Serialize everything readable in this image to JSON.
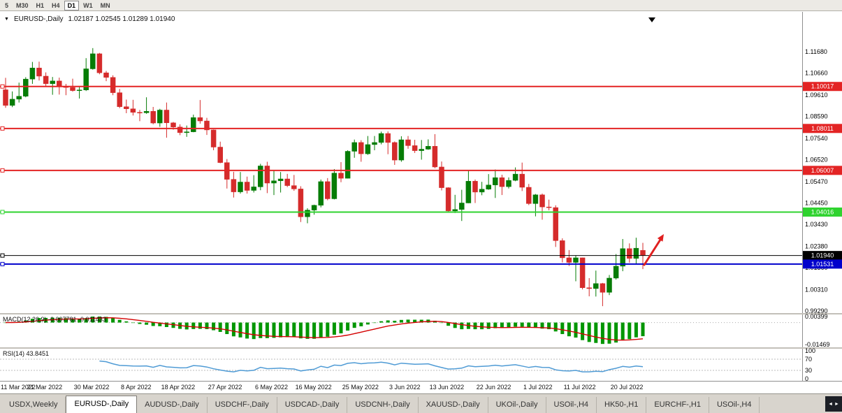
{
  "toolbar": {
    "timeframes": [
      "5",
      "M30",
      "H1",
      "H4",
      "D1",
      "W1",
      "MN"
    ],
    "active_timeframe": "D1"
  },
  "icons": {
    "dropdown": "▼",
    "shift_marker": "▼",
    "tab_scroll_left": "◄",
    "tab_scroll_right": "►"
  },
  "chart": {
    "symbol_label": "EURUSD-,Daily",
    "ohlc_text": "1.02187 1.02545 1.01289 1.01940",
    "price_lines": [
      {
        "price": 1.10017,
        "label": "1.10017",
        "color": "#e32424",
        "width": 2
      },
      {
        "price": 1.08011,
        "label": "1.08011",
        "color": "#e32424",
        "width": 2
      },
      {
        "price": 1.06007,
        "label": "1.06007",
        "color": "#e32424",
        "width": 2
      },
      {
        "price": 1.04016,
        "label": "1.04016",
        "color": "#2fd32f",
        "width": 2
      },
      {
        "price": 1.0194,
        "label": "1.01940",
        "color": "#000000",
        "width": 1
      },
      {
        "price": 1.01531,
        "label": "1.01531",
        "color": "#0000cc",
        "width": 2
      }
    ]
  },
  "chart_data": {
    "type": "candlestick",
    "symbol": "EURUSD-",
    "timeframe": "Daily",
    "title": "EURUSD-,Daily",
    "current_ohlc": {
      "open": 1.02187,
      "high": 1.02545,
      "low": 1.01289,
      "close": 1.0194
    },
    "y_range": [
      0.9929,
      1.1308
    ],
    "y_axis_ticks": [
      "1.11680",
      "1.10660",
      "1.09610",
      "1.08590",
      "1.07540",
      "1.06520",
      "1.05470",
      "1.04450",
      "1.03430",
      "1.02380",
      "1.01360",
      "1.00310",
      "0.99290"
    ],
    "x_tick_labels": [
      {
        "i": 0,
        "label": "11 Mar 2022"
      },
      {
        "i": 6,
        "label": "21 Mar 2022"
      },
      {
        "i": 13,
        "label": "30 Mar 2022"
      },
      {
        "i": 20,
        "label": "8 Apr 2022"
      },
      {
        "i": 26,
        "label": "18 Apr 2022"
      },
      {
        "i": 33,
        "label": "27 Apr 2022"
      },
      {
        "i": 40,
        "label": "6 May 2022"
      },
      {
        "i": 46,
        "label": "16 May 2022"
      },
      {
        "i": 53,
        "label": "25 May 2022"
      },
      {
        "i": 60,
        "label": "3 Jun 2022"
      },
      {
        "i": 66,
        "label": "13 Jun 2022"
      },
      {
        "i": 73,
        "label": "22 Jun 2022"
      },
      {
        "i": 80,
        "label": "1 Jul 2022"
      },
      {
        "i": 86,
        "label": "11 Jul 2022"
      },
      {
        "i": 93,
        "label": "20 Jul 2022"
      }
    ],
    "candles": [
      [
        1.0986,
        1.1043,
        1.09,
        1.0911
      ],
      [
        1.0911,
        1.0978,
        1.0903,
        1.0941
      ],
      [
        1.0941,
        1.102,
        1.0925,
        1.0955
      ],
      [
        1.0955,
        1.1046,
        1.095,
        1.1037
      ],
      [
        1.1037,
        1.1119,
        1.1014,
        1.109
      ],
      [
        1.109,
        1.112,
        1.103,
        1.1051
      ],
      [
        1.1051,
        1.1069,
        1.1003,
        1.1015
      ],
      [
        1.1015,
        1.1047,
        1.0962,
        1.1028
      ],
      [
        1.1028,
        1.1044,
        1.0963,
        1.1003
      ],
      [
        1.1003,
        1.1014,
        1.096,
        1.0997
      ],
      [
        1.0997,
        1.1039,
        1.0977,
        1.0982
      ],
      [
        1.0982,
        1.0999,
        1.0944,
        1.0985
      ],
      [
        1.0985,
        1.1137,
        1.098,
        1.1086
      ],
      [
        1.1086,
        1.1185,
        1.1082,
        1.1158
      ],
      [
        1.1158,
        1.1162,
        1.106,
        1.1067
      ],
      [
        1.1067,
        1.1076,
        1.1027,
        1.1045
      ],
      [
        1.1045,
        1.1055,
        1.096,
        1.0972
      ],
      [
        1.0972,
        1.099,
        1.0898,
        1.0905
      ],
      [
        1.0905,
        1.0939,
        1.0874,
        1.0895
      ],
      [
        1.0895,
        1.0938,
        1.0863,
        1.0878
      ],
      [
        1.0878,
        1.089,
        1.0836,
        1.0876
      ],
      [
        1.0876,
        1.095,
        1.0871,
        1.0883
      ],
      [
        1.0883,
        1.0904,
        1.0821,
        1.0827
      ],
      [
        1.0827,
        1.0895,
        1.0809,
        1.0889
      ],
      [
        1.0889,
        1.0925,
        1.0757,
        1.0828
      ],
      [
        1.0828,
        1.0832,
        1.0795,
        1.0808
      ],
      [
        1.0808,
        1.0821,
        1.0769,
        1.0781
      ],
      [
        1.0781,
        1.0815,
        1.0761,
        1.0785
      ],
      [
        1.0785,
        1.0867,
        1.0783,
        1.0853
      ],
      [
        1.0853,
        1.0937,
        1.0824,
        1.0837
      ],
      [
        1.0837,
        1.0852,
        1.077,
        1.0794
      ],
      [
        1.0794,
        1.0796,
        1.0697,
        1.0712
      ],
      [
        1.0712,
        1.0738,
        1.0635,
        1.0638
      ],
      [
        1.0638,
        1.0655,
        1.0514,
        1.0558
      ],
      [
        1.0558,
        1.0594,
        1.0471,
        1.0498
      ],
      [
        1.0498,
        1.0593,
        1.049,
        1.0545
      ],
      [
        1.0545,
        1.0571,
        1.049,
        1.0505
      ],
      [
        1.0505,
        1.0578,
        1.0495,
        1.0522
      ],
      [
        1.0522,
        1.0632,
        1.0506,
        1.0622
      ],
      [
        1.0622,
        1.0642,
        1.0492,
        1.054
      ],
      [
        1.054,
        1.0599,
        1.0483,
        1.0551
      ],
      [
        1.0551,
        1.0593,
        1.0495,
        1.056
      ],
      [
        1.056,
        1.0584,
        1.0521,
        1.0528
      ],
      [
        1.0528,
        1.0579,
        1.0503,
        1.0512
      ],
      [
        1.0512,
        1.0525,
        1.0354,
        1.0379
      ],
      [
        1.0379,
        1.042,
        1.0348,
        1.0411
      ],
      [
        1.0411,
        1.0437,
        1.0389,
        1.0434
      ],
      [
        1.0434,
        1.0557,
        1.0424,
        1.0547
      ],
      [
        1.0547,
        1.0564,
        1.0458,
        1.0465
      ],
      [
        1.0465,
        1.0607,
        1.0462,
        1.0588
      ],
      [
        1.0588,
        1.064,
        1.0544,
        1.0563
      ],
      [
        1.0563,
        1.0697,
        1.0562,
        1.0692
      ],
      [
        1.0692,
        1.0748,
        1.0661,
        1.0734
      ],
      [
        1.0734,
        1.0745,
        1.0642,
        1.068
      ],
      [
        1.068,
        1.0765,
        1.0675,
        1.0724
      ],
      [
        1.0724,
        1.0765,
        1.0697,
        1.0734
      ],
      [
        1.0734,
        1.0786,
        1.0725,
        1.0777
      ],
      [
        1.0777,
        1.0787,
        1.0678,
        1.0734
      ],
      [
        1.0734,
        1.0739,
        1.0627,
        1.065
      ],
      [
        1.065,
        1.0764,
        1.0642,
        1.0747
      ],
      [
        1.0747,
        1.0765,
        1.0704,
        1.0719
      ],
      [
        1.0719,
        1.0747,
        1.0684,
        1.0695
      ],
      [
        1.0695,
        1.0746,
        1.0652,
        1.0702
      ],
      [
        1.0702,
        1.0749,
        1.0699,
        1.0716
      ],
      [
        1.0716,
        1.0774,
        1.0611,
        1.0617
      ],
      [
        1.0617,
        1.0643,
        1.0505,
        1.0518
      ],
      [
        1.0518,
        1.052,
        1.0399,
        1.0407
      ],
      [
        1.0407,
        1.0484,
        1.0397,
        1.0414
      ],
      [
        1.0414,
        1.0508,
        1.0359,
        1.0445
      ],
      [
        1.0445,
        1.0601,
        1.0444,
        1.0549
      ],
      [
        1.0549,
        1.0557,
        1.0445,
        1.0497
      ],
      [
        1.0497,
        1.0546,
        1.0482,
        1.0511
      ],
      [
        1.0511,
        1.0583,
        1.0508,
        1.0531
      ],
      [
        1.0531,
        1.0605,
        1.0469,
        1.0566
      ],
      [
        1.0566,
        1.058,
        1.0483,
        1.0523
      ],
      [
        1.0523,
        1.0567,
        1.0514,
        1.0553
      ],
      [
        1.0553,
        1.0615,
        1.0549,
        1.0583
      ],
      [
        1.0583,
        1.0638,
        1.0502,
        1.052
      ],
      [
        1.052,
        1.0536,
        1.0435,
        1.0442
      ],
      [
        1.0442,
        1.0488,
        1.0381,
        1.0484
      ],
      [
        1.0484,
        1.049,
        1.0365,
        1.0426
      ],
      [
        1.0426,
        1.0461,
        1.041,
        1.0423
      ],
      [
        1.0423,
        1.0434,
        1.0235,
        1.0265
      ],
      [
        1.0265,
        1.0276,
        1.0161,
        1.0183
      ],
      [
        1.0183,
        1.022,
        1.0144,
        1.0161
      ],
      [
        1.0161,
        1.0193,
        1.0071,
        1.0183
      ],
      [
        1.0183,
        1.0184,
        1.0032,
        1.004
      ],
      [
        1.004,
        1.0086,
        0.9999,
        1.0036
      ],
      [
        1.0036,
        1.0122,
        0.9998,
        1.006
      ],
      [
        1.006,
        1.0063,
        0.9952,
        1.0018
      ],
      [
        1.0018,
        1.0101,
        1.0005,
        1.0086
      ],
      [
        1.0086,
        1.0201,
        1.0079,
        1.0143
      ],
      [
        1.0143,
        1.0273,
        1.0119,
        1.0227
      ],
      [
        1.0227,
        1.0252,
        1.016,
        1.018
      ],
      [
        1.018,
        1.0279,
        1.0151,
        1.0229
      ],
      [
        1.02187,
        1.02545,
        1.01289,
        1.0194
      ]
    ]
  },
  "indicators": {
    "macd": {
      "label": "MACD(12,26,9) -0.007781 -0.011433",
      "params": [
        12,
        26,
        9
      ],
      "value": -0.007781,
      "signal_value": -0.011433,
      "axis_labels": [
        "0.00399",
        "-0.01469"
      ]
    },
    "rsi": {
      "label": "RSI(14) 43.8451",
      "period": 14,
      "value": 43.8451,
      "axis_labels": [
        "100",
        "70",
        "30",
        "0"
      ],
      "levels": [
        70,
        30
      ]
    }
  },
  "annotations": {
    "trend_arrow": {
      "color": "#e02020",
      "from": [
        922,
        362
      ],
      "to": [
        950,
        318
      ]
    }
  },
  "colors": {
    "bull_candle": "#067c06",
    "bear_candle": "#d52b2b",
    "macd_histogram": "#009600",
    "macd_signal": "#d40000",
    "rsi_line": "#4f9bd5",
    "axis_text": "#000000"
  },
  "bottom_tabs": {
    "tabs": [
      {
        "label": "USDX,Weekly",
        "active": false
      },
      {
        "label": "EURUSD-,Daily",
        "active": true
      },
      {
        "label": "AUDUSD-,Daily",
        "active": false
      },
      {
        "label": "USDCHF-,Daily",
        "active": false
      },
      {
        "label": "USDCAD-,Daily",
        "active": false
      },
      {
        "label": "USDCNH-,Daily",
        "active": false
      },
      {
        "label": "XAUUSD-,Daily",
        "active": false
      },
      {
        "label": "UKOil-,Daily",
        "active": false
      },
      {
        "label": "USOil-,H4",
        "active": false
      },
      {
        "label": "HK50-,H1",
        "active": false
      },
      {
        "label": "EURCHF-,H1",
        "active": false
      },
      {
        "label": "USOil-,H4",
        "active": false
      }
    ]
  }
}
